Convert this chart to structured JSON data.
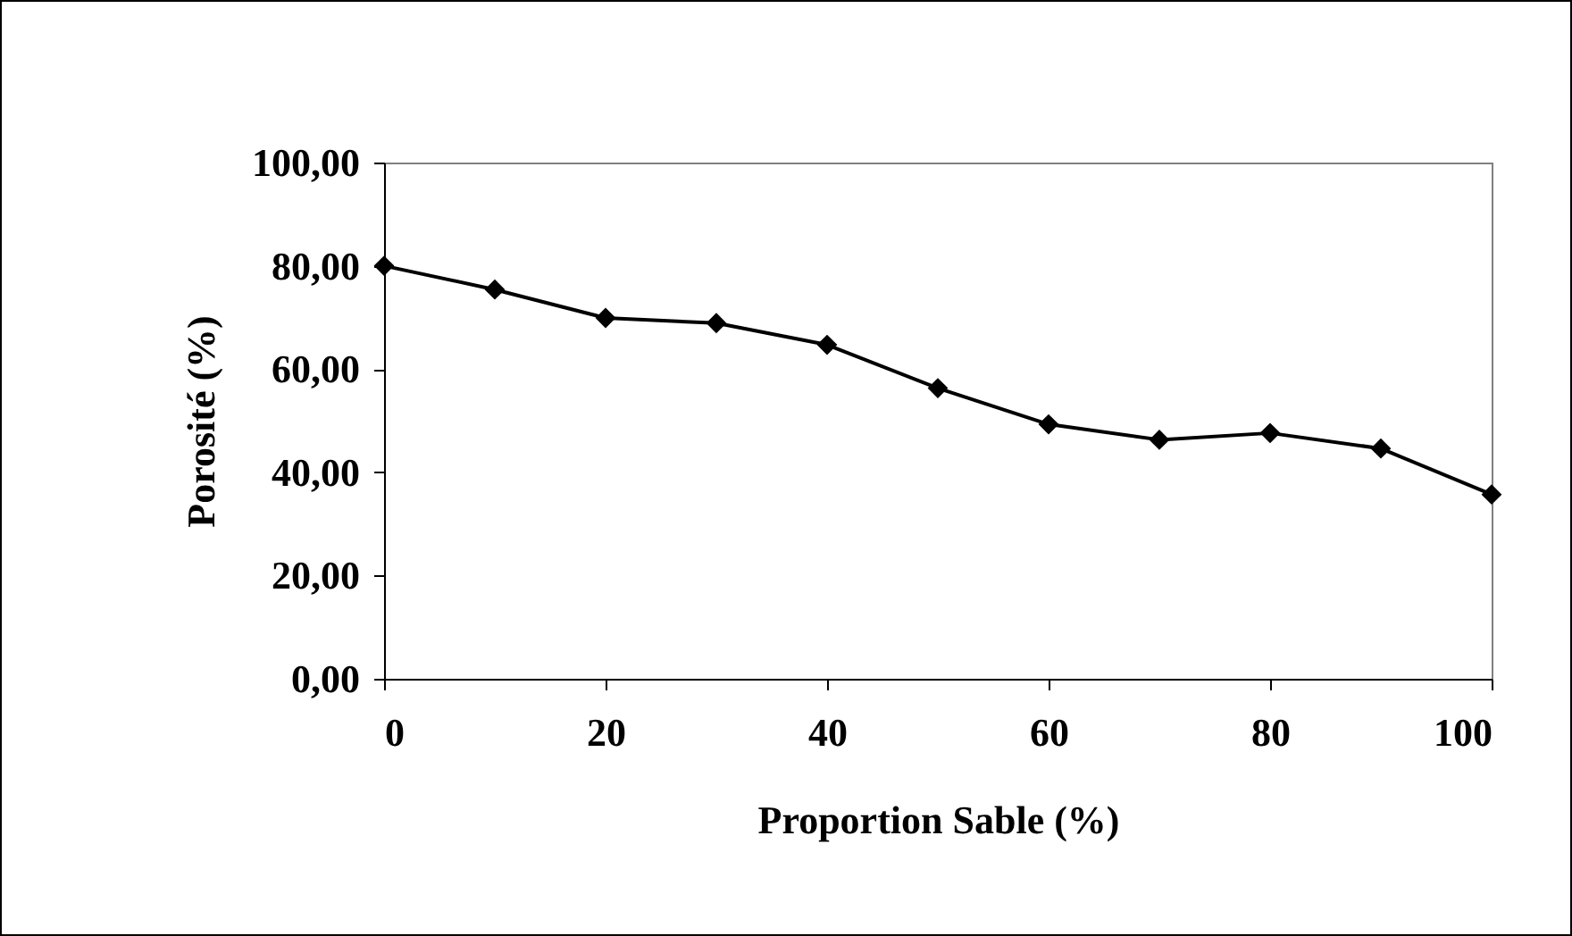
{
  "chart_data": {
    "type": "line",
    "xlabel": "Proportion Sable (%)",
    "ylabel": "Porosité (%)",
    "x": [
      0,
      10,
      20,
      30,
      40,
      50,
      60,
      70,
      80,
      90,
      100
    ],
    "series": [
      {
        "color": "#000000",
        "values": [
          80,
          75.4,
          69.9,
          68.9,
          64.7,
          56.3,
          49.3,
          46.3,
          47.6,
          44.6,
          35.7
        ]
      }
    ],
    "xlim": [
      0,
      100
    ],
    "xticks": [
      0,
      20,
      40,
      60,
      80,
      100
    ],
    "ylim": [
      0,
      100
    ],
    "yticks": [
      {
        "value": 0,
        "label": "0,00"
      },
      {
        "value": 20,
        "label": "20,00"
      },
      {
        "value": 40,
        "label": "40,00"
      },
      {
        "value": 60,
        "label": "60,00"
      },
      {
        "value": 80,
        "label": "80,00"
      },
      {
        "value": 100,
        "label": "100,00"
      }
    ],
    "grid": false,
    "legend": false,
    "marker": "diamond",
    "line_style": "solid"
  }
}
